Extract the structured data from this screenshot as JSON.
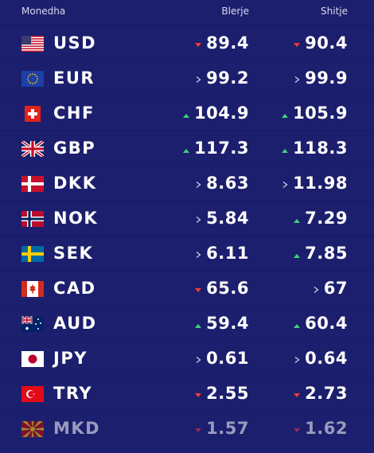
{
  "header": {
    "currency": "Monedha",
    "buy": "Blerje",
    "sell": "Shitje"
  },
  "rows": [
    {
      "code": "USD",
      "buy": "89.4",
      "buy_trend": "down",
      "sell": "90.4",
      "sell_trend": "down"
    },
    {
      "code": "EUR",
      "buy": "99.2",
      "buy_trend": "flat",
      "sell": "99.9",
      "sell_trend": "flat"
    },
    {
      "code": "CHF",
      "buy": "104.9",
      "buy_trend": "up",
      "sell": "105.9",
      "sell_trend": "up"
    },
    {
      "code": "GBP",
      "buy": "117.3",
      "buy_trend": "up",
      "sell": "118.3",
      "sell_trend": "up"
    },
    {
      "code": "DKK",
      "buy": "8.63",
      "buy_trend": "flat",
      "sell": "11.98",
      "sell_trend": "flat"
    },
    {
      "code": "NOK",
      "buy": "5.84",
      "buy_trend": "flat",
      "sell": "7.29",
      "sell_trend": "up"
    },
    {
      "code": "SEK",
      "buy": "6.11",
      "buy_trend": "flat",
      "sell": "7.85",
      "sell_trend": "up"
    },
    {
      "code": "CAD",
      "buy": "65.6",
      "buy_trend": "down",
      "sell": "67",
      "sell_trend": "flat"
    },
    {
      "code": "AUD",
      "buy": "59.4",
      "buy_trend": "up",
      "sell": "60.4",
      "sell_trend": "up"
    },
    {
      "code": "JPY",
      "buy": "0.61",
      "buy_trend": "flat",
      "sell": "0.64",
      "sell_trend": "flat"
    },
    {
      "code": "TRY",
      "buy": "2.55",
      "buy_trend": "down",
      "sell": "2.73",
      "sell_trend": "down"
    },
    {
      "code": "MKD",
      "buy": "1.57",
      "buy_trend": "down",
      "sell": "1.62",
      "sell_trend": "down"
    }
  ]
}
